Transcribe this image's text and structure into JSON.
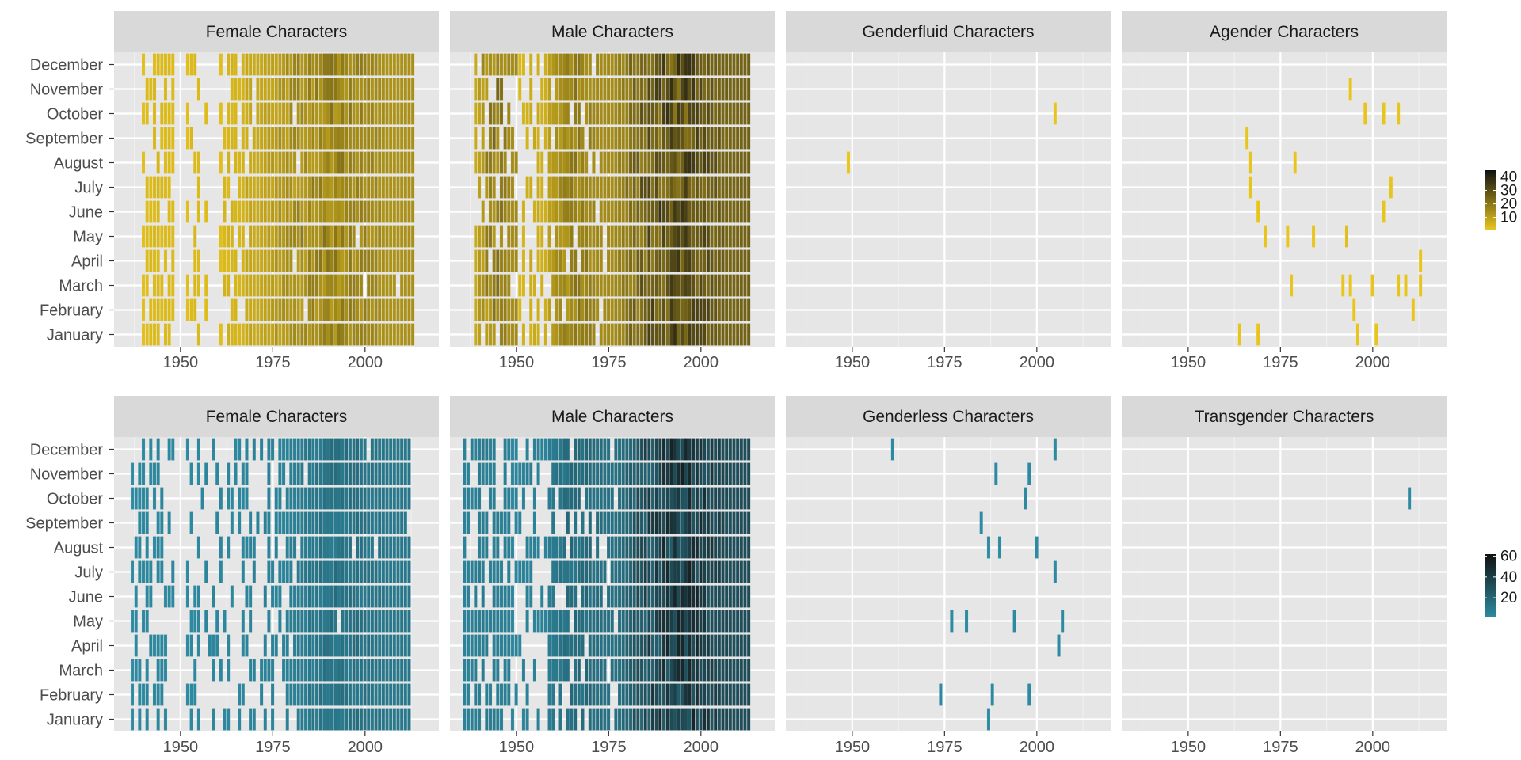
{
  "chart_data": {
    "type": "heatmap",
    "description_units": "x = year of first appearance, y = month, fill = number of new characters",
    "months": [
      "January",
      "February",
      "March",
      "April",
      "May",
      "June",
      "July",
      "August",
      "September",
      "October",
      "November",
      "December"
    ],
    "x_ticks": [
      1950,
      1975,
      2000
    ],
    "xlim": [
      1932,
      2020
    ],
    "rows": [
      {
        "name": "top",
        "palette": {
          "low": "#e8c51e",
          "high": "#111111",
          "empty": "#e6e6e6"
        },
        "legend": {
          "ticks": [
            10,
            20,
            30,
            40
          ],
          "min": 1,
          "max": 45
        },
        "panels": [
          {
            "title": "Female Characters",
            "spans": [
              {
                "from": 1940,
                "to": 1948,
                "density": 0.75,
                "base": 2,
                "peak": 4
              },
              {
                "from": 1952,
                "to": 1955,
                "density": 0.55,
                "base": 2,
                "peak": 4
              },
              {
                "from": 1957,
                "to": 1957,
                "density": 0.4,
                "base": 2,
                "peak": 3
              },
              {
                "from": 1961,
                "to": 1966,
                "density": 0.65,
                "base": 2,
                "peak": 6
              },
              {
                "from": 1967,
                "to": 1970,
                "density": 0.85,
                "base": 4,
                "peak": 9
              },
              {
                "from": 1971,
                "to": 2013,
                "density": 0.98,
                "base": 6,
                "peak": 22
              }
            ]
          },
          {
            "title": "Male Characters",
            "spans": [
              {
                "from": 1939,
                "to": 1950,
                "density": 0.85,
                "base": 6,
                "peak": 26
              },
              {
                "from": 1951,
                "to": 1958,
                "density": 0.6,
                "base": 3,
                "peak": 8
              },
              {
                "from": 1959,
                "to": 1975,
                "density": 0.92,
                "base": 8,
                "peak": 22
              },
              {
                "from": 1976,
                "to": 2013,
                "density": 1.0,
                "base": 12,
                "peak": 44
              }
            ]
          },
          {
            "title": "Genderfluid Characters",
            "cells": [
              {
                "year": 1949,
                "month": "August",
                "value": 1
              },
              {
                "year": 2005,
                "month": "October",
                "value": 1
              }
            ]
          },
          {
            "title": "Agender Characters",
            "cells": [
              {
                "year": 1994,
                "month": "November",
                "value": 1
              },
              {
                "year": 1998,
                "month": "October",
                "value": 1
              },
              {
                "year": 2003,
                "month": "October",
                "value": 1
              },
              {
                "year": 2007,
                "month": "October",
                "value": 1
              },
              {
                "year": 1966,
                "month": "September",
                "value": 1
              },
              {
                "year": 1967,
                "month": "August",
                "value": 1
              },
              {
                "year": 1979,
                "month": "August",
                "value": 1
              },
              {
                "year": 1967,
                "month": "July",
                "value": 1
              },
              {
                "year": 2005,
                "month": "July",
                "value": 1
              },
              {
                "year": 1969,
                "month": "June",
                "value": 1
              },
              {
                "year": 2003,
                "month": "June",
                "value": 1
              },
              {
                "year": 1971,
                "month": "May",
                "value": 1
              },
              {
                "year": 1977,
                "month": "May",
                "value": 1
              },
              {
                "year": 1984,
                "month": "May",
                "value": 1
              },
              {
                "year": 1993,
                "month": "May",
                "value": 2
              },
              {
                "year": 2013,
                "month": "April",
                "value": 1
              },
              {
                "year": 1978,
                "month": "March",
                "value": 1
              },
              {
                "year": 1992,
                "month": "March",
                "value": 1
              },
              {
                "year": 1994,
                "month": "March",
                "value": 1
              },
              {
                "year": 2000,
                "month": "March",
                "value": 1
              },
              {
                "year": 2007,
                "month": "March",
                "value": 1
              },
              {
                "year": 2009,
                "month": "March",
                "value": 1
              },
              {
                "year": 2013,
                "month": "March",
                "value": 1
              },
              {
                "year": 1995,
                "month": "February",
                "value": 1
              },
              {
                "year": 2011,
                "month": "February",
                "value": 1
              },
              {
                "year": 1964,
                "month": "January",
                "value": 1
              },
              {
                "year": 1969,
                "month": "January",
                "value": 1
              },
              {
                "year": 1996,
                "month": "January",
                "value": 1
              },
              {
                "year": 2001,
                "month": "January",
                "value": 1
              }
            ]
          }
        ]
      },
      {
        "name": "bottom",
        "palette": {
          "low": "#2e8aa1",
          "high": "#111111",
          "empty": "#e6e6e6"
        },
        "legend": {
          "ticks": [
            20,
            40,
            60
          ],
          "min": 1,
          "max": 62
        },
        "panels": [
          {
            "title": "Female Characters",
            "spans": [
              {
                "from": 1937,
                "to": 1948,
                "density": 0.45,
                "base": 1,
                "peak": 3
              },
              {
                "from": 1952,
                "to": 1966,
                "density": 0.3,
                "base": 1,
                "peak": 3
              },
              {
                "from": 1967,
                "to": 1978,
                "density": 0.55,
                "base": 2,
                "peak": 5
              },
              {
                "from": 1979,
                "to": 2012,
                "density": 0.96,
                "base": 4,
                "peak": 16
              }
            ]
          },
          {
            "title": "Male Characters",
            "spans": [
              {
                "from": 1936,
                "to": 1948,
                "density": 0.75,
                "base": 3,
                "peak": 8
              },
              {
                "from": 1949,
                "to": 1958,
                "density": 0.45,
                "base": 2,
                "peak": 6
              },
              {
                "from": 1959,
                "to": 1977,
                "density": 0.85,
                "base": 6,
                "peak": 20
              },
              {
                "from": 1978,
                "to": 2013,
                "density": 1.0,
                "base": 12,
                "peak": 62
              }
            ]
          },
          {
            "title": "Genderless Characters",
            "cells": [
              {
                "year": 1961,
                "month": "December",
                "value": 1
              },
              {
                "year": 2005,
                "month": "December",
                "value": 1
              },
              {
                "year": 1989,
                "month": "November",
                "value": 1
              },
              {
                "year": 1998,
                "month": "November",
                "value": 1
              },
              {
                "year": 1997,
                "month": "October",
                "value": 1
              },
              {
                "year": 1985,
                "month": "September",
                "value": 1
              },
              {
                "year": 1987,
                "month": "August",
                "value": 1
              },
              {
                "year": 1990,
                "month": "August",
                "value": 1
              },
              {
                "year": 2000,
                "month": "August",
                "value": 1
              },
              {
                "year": 2005,
                "month": "July",
                "value": 1
              },
              {
                "year": 1977,
                "month": "May",
                "value": 1
              },
              {
                "year": 1981,
                "month": "May",
                "value": 1
              },
              {
                "year": 1994,
                "month": "May",
                "value": 1
              },
              {
                "year": 2007,
                "month": "May",
                "value": 1
              },
              {
                "year": 2006,
                "month": "April",
                "value": 1
              },
              {
                "year": 1974,
                "month": "February",
                "value": 1
              },
              {
                "year": 1988,
                "month": "February",
                "value": 1
              },
              {
                "year": 1998,
                "month": "February",
                "value": 1
              },
              {
                "year": 1987,
                "month": "January",
                "value": 1
              }
            ]
          },
          {
            "title": "Transgender Characters",
            "cells": [
              {
                "year": 2010,
                "month": "October",
                "value": 1
              }
            ]
          }
        ]
      }
    ]
  }
}
